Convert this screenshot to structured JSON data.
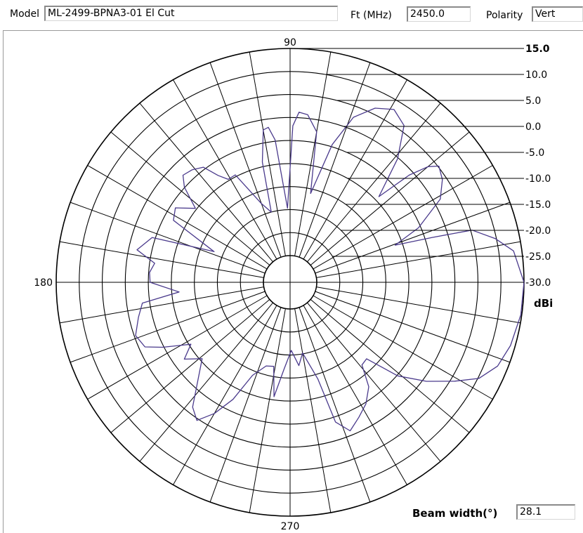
{
  "header": {
    "model_label": "Model",
    "model_value": "ML-2499-BPNA3-01  El Cut",
    "freq_label": "Ft (MHz)",
    "freq_value": "2450.0",
    "polarity_label": "Polarity",
    "polarity_value": "Vert"
  },
  "footer": {
    "beam_width_label": "Beam width(°)",
    "beam_width_value": "28.1"
  },
  "chart_data": {
    "type": "polar-line",
    "unit_label": "dBi",
    "r_min": -30,
    "r_max": 15,
    "r_step": 5,
    "r_ticks": [
      "15.0",
      "10.0",
      "5.0",
      "0.0",
      "-5.0",
      "-10.0",
      "-15.0",
      "-20.0",
      "-25.0",
      "-30.0"
    ],
    "angle_step_deg": 10,
    "angle_labels": [
      {
        "angle": 90,
        "text": "90"
      },
      {
        "angle": 180,
        "text": "180"
      },
      {
        "angle": 270,
        "text": "270"
      }
    ],
    "grid": true,
    "colors": {
      "trace": "#4a3a8c",
      "grid": "#000000"
    },
    "series": [
      {
        "points": [
          [
            0,
            15.0
          ],
          [
            8,
            13.2
          ],
          [
            12,
            9.8
          ],
          [
            16,
            5.3
          ],
          [
            17.5,
            -3.4
          ],
          [
            19.5,
            -11.6
          ],
          [
            23,
            -5.5
          ],
          [
            29,
            1.5
          ],
          [
            34,
            4.1
          ],
          [
            38,
            5.2
          ],
          [
            40,
            3.3
          ],
          [
            42,
            -1.0
          ],
          [
            44,
            -9.0
          ],
          [
            49,
            -0.2
          ],
          [
            54,
            6.3
          ],
          [
            59,
            8.0
          ],
          [
            64,
            6.3
          ],
          [
            69,
            2.6
          ],
          [
            73,
            -4.5
          ],
          [
            77,
            -16.0
          ],
          [
            80,
            -2.6
          ],
          [
            84,
            0.8
          ],
          [
            87,
            1.2
          ],
          [
            89,
            -1.8
          ],
          [
            92,
            -19.7
          ],
          [
            96,
            -4.7
          ],
          [
            98,
            -1.8
          ],
          [
            100,
            -2.2
          ],
          [
            103,
            -9.0
          ],
          [
            105,
            -20.0
          ],
          [
            110,
            -17.6
          ],
          [
            117,
            -9.6
          ],
          [
            121,
            -9.7
          ],
          [
            124,
            -7.8
          ],
          [
            127,
            -4.5
          ],
          [
            131,
            -3.4
          ],
          [
            135,
            -2.9
          ],
          [
            138,
            -4.9
          ],
          [
            142,
            -9.7
          ],
          [
            147,
            -6.1
          ],
          [
            152,
            -7.1
          ],
          [
            158,
            -18.0
          ],
          [
            162,
            -4.3
          ],
          [
            168,
            -1.8
          ],
          [
            172,
            -6.1
          ],
          [
            176,
            -5.2
          ],
          [
            180,
            -5.4
          ],
          [
            185,
            -11.6
          ],
          [
            188,
            -3.4
          ],
          [
            193,
            -2.0
          ],
          [
            199,
            -0.3
          ],
          [
            204,
            -1.3
          ],
          [
            207,
            -4.7
          ],
          [
            212,
            -10.4
          ],
          [
            216,
            -7.4
          ],
          [
            221,
            -10.5
          ],
          [
            232,
            -1.4
          ],
          [
            236,
            0.4
          ],
          [
            240,
            -2.9
          ],
          [
            244,
            -7.5
          ],
          [
            248,
            -14.0
          ],
          [
            254,
            -16.9
          ],
          [
            259,
            -17.2
          ],
          [
            262,
            -10.7
          ],
          [
            266,
            -16.9
          ],
          [
            271,
            -21.0
          ],
          [
            276,
            -17.6
          ],
          [
            280,
            -20.2
          ],
          [
            286,
            -14.0
          ],
          [
            288,
            -3.9
          ],
          [
            292,
            -1.0
          ],
          [
            297,
            -2.9
          ],
          [
            302,
            -4.7
          ],
          [
            307,
            -7.4
          ],
          [
            311,
            -12.0
          ],
          [
            315,
            -12.3
          ],
          [
            319,
            -4.8
          ],
          [
            324,
            0.8
          ],
          [
            329,
            5.9
          ],
          [
            333,
            10.2
          ],
          [
            338,
            12.8
          ],
          [
            344,
            14.0
          ],
          [
            352,
            14.8
          ],
          [
            360,
            15.0
          ]
        ]
      }
    ]
  }
}
